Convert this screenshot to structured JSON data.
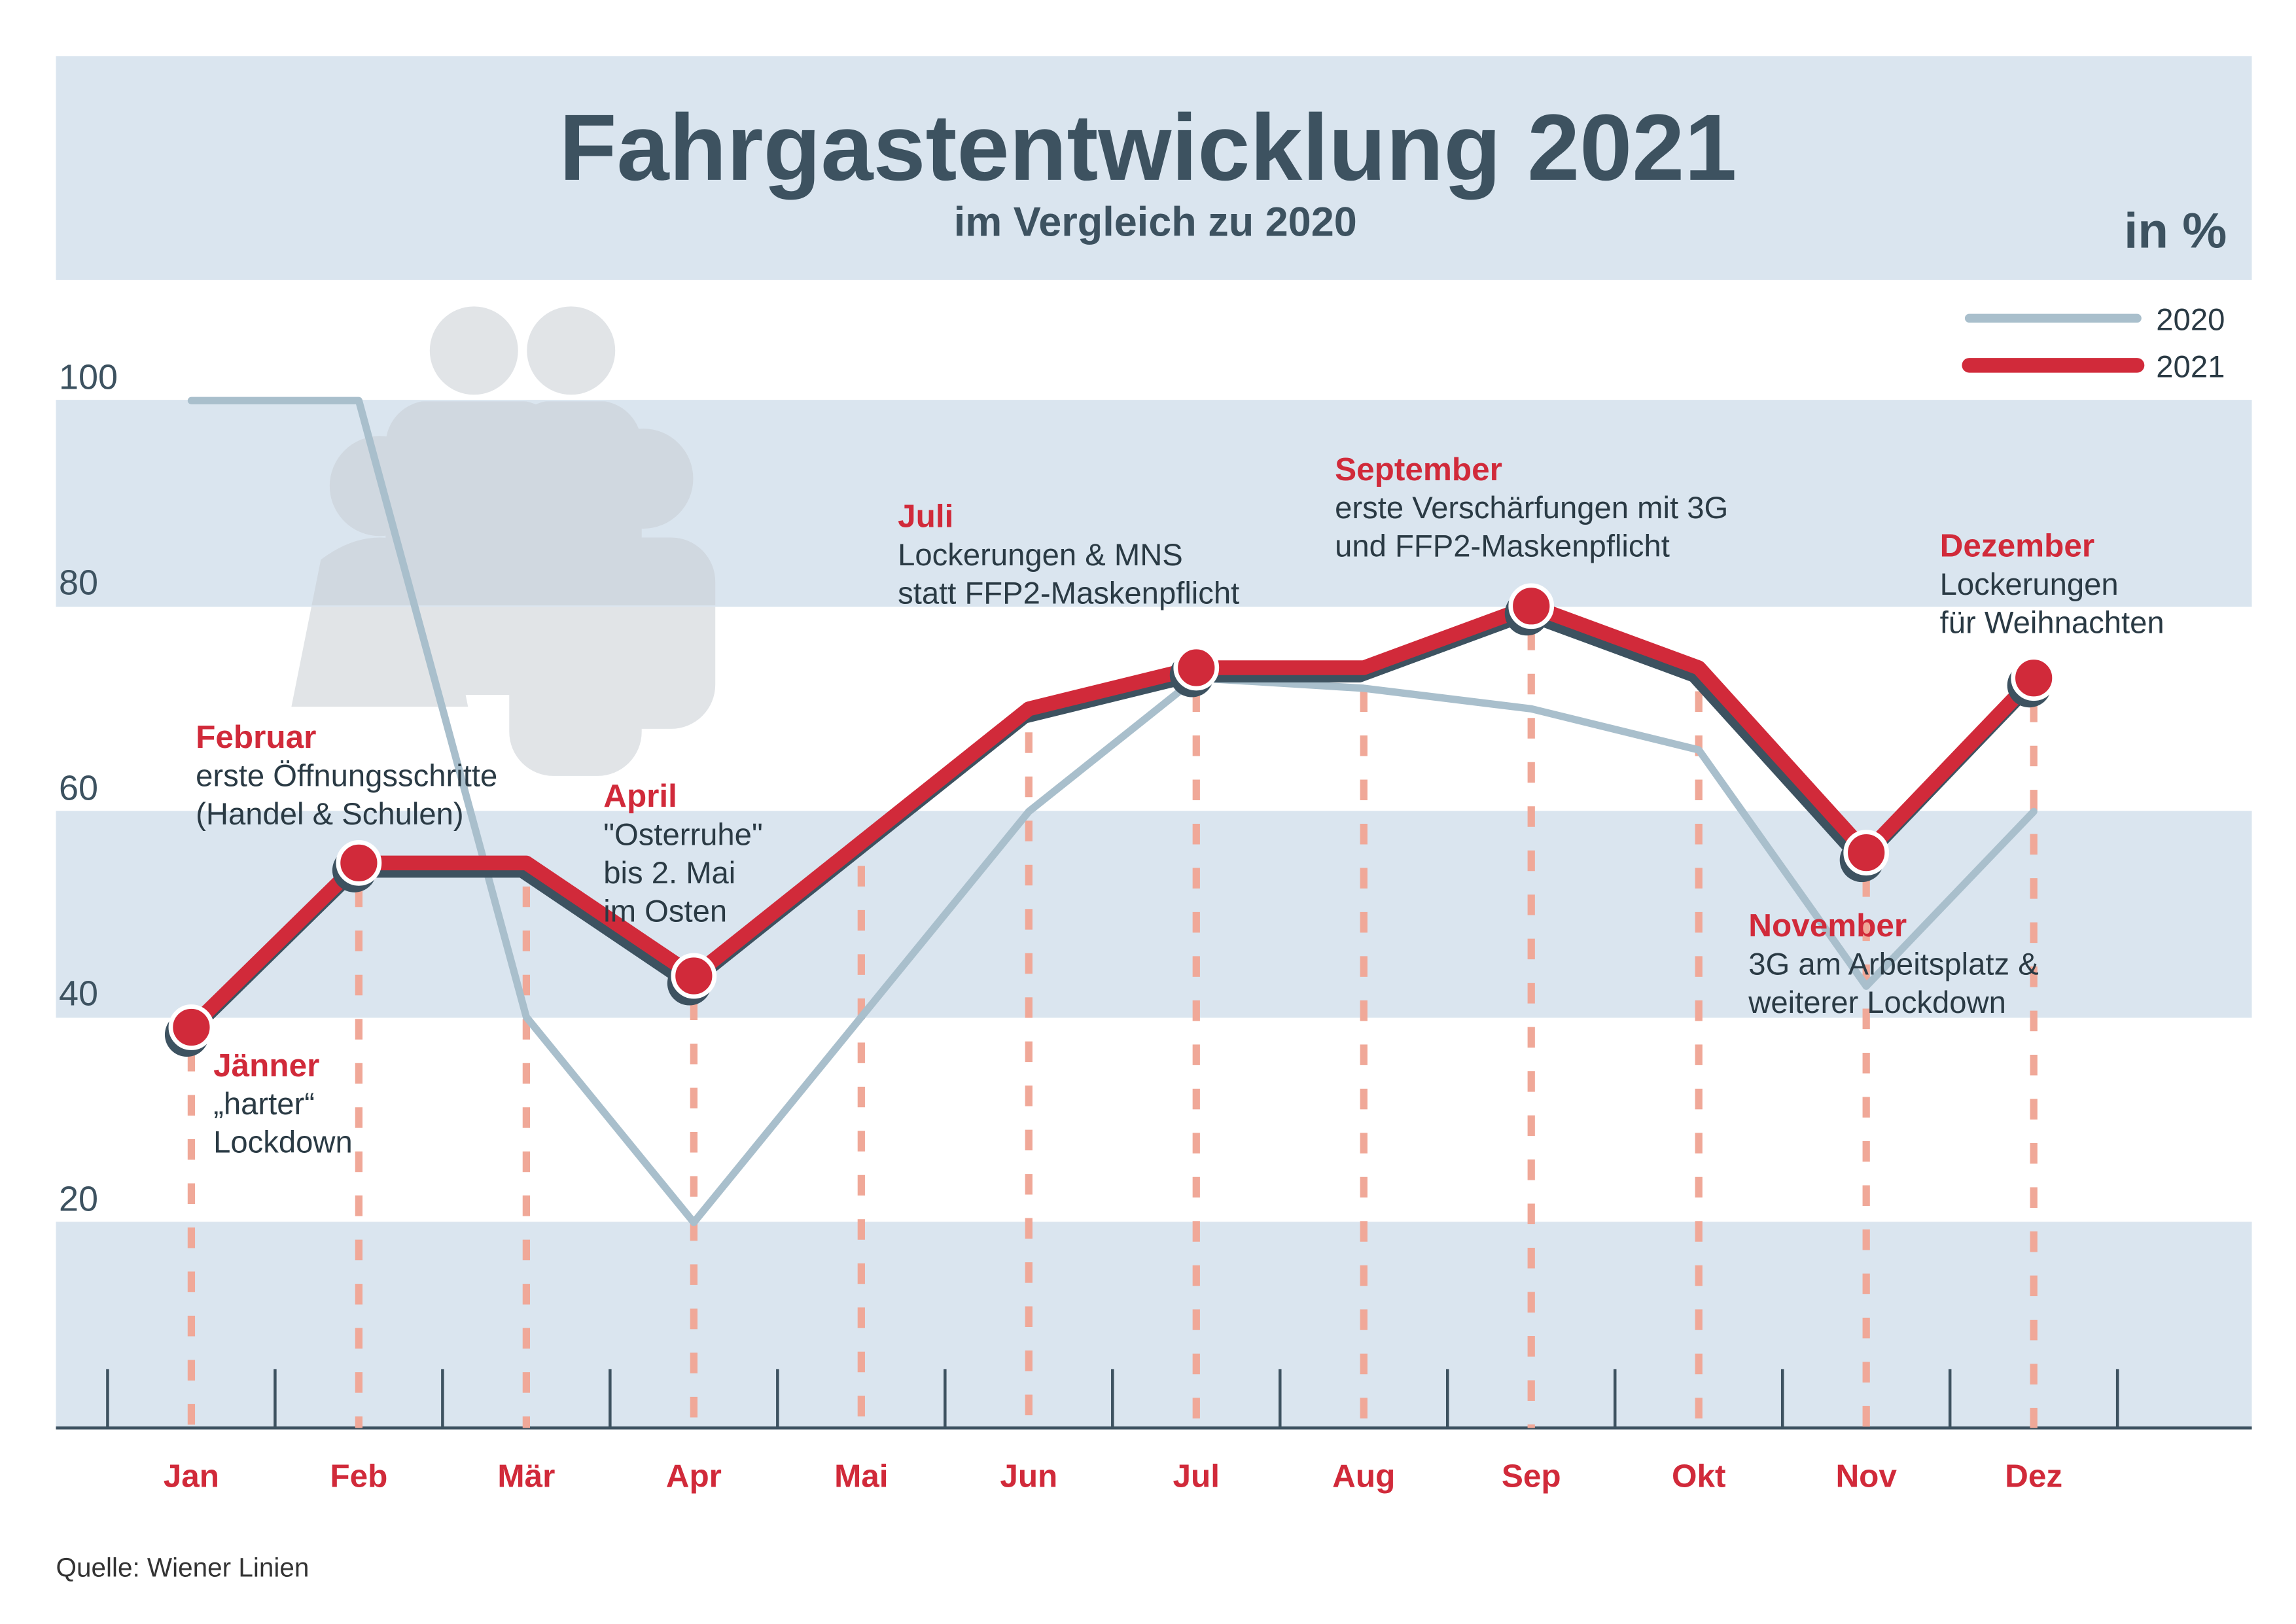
{
  "chart_data": {
    "type": "line",
    "title": "Fahrgastentwicklung 2021",
    "subtitle": "im Vergleich zu 2020",
    "unit": "in %",
    "source": "Quelle: Wiener Linien",
    "categories": [
      "Jan",
      "Feb",
      "Mär",
      "Apr",
      "Mai",
      "Jun",
      "Jul",
      "Aug",
      "Sep",
      "Okt",
      "Nov",
      "Dez"
    ],
    "series": [
      {
        "name": "2020",
        "color": "#a9bfcc",
        "values": [
          100,
          100,
          40,
          20,
          40,
          60,
          73,
          72,
          70,
          66,
          43,
          60
        ]
      },
      {
        "name": "2021",
        "color": "#d12a3a",
        "values": [
          39,
          55,
          55,
          44,
          57,
          70,
          74,
          74,
          80,
          74,
          56,
          73
        ]
      }
    ],
    "ylim": [
      0,
      100
    ],
    "yticks": [
      20,
      40,
      60,
      80,
      100
    ],
    "legend": "top-right",
    "annotations": [
      {
        "index": 0,
        "title": "Jänner",
        "lines": [
          "„harter“",
          "Lockdown"
        ]
      },
      {
        "index": 1,
        "title": "Februar",
        "lines": [
          "erste Öffnungsschritte",
          "(Handel & Schulen)"
        ]
      },
      {
        "index": 3,
        "title": "April",
        "lines": [
          "\"Osterruhe\"",
          "bis 2. Mai",
          "im Osten"
        ]
      },
      {
        "index": 6,
        "title": "Juli",
        "lines": [
          "Lockerungen & MNS",
          "statt FFP2-Maskenpflicht"
        ]
      },
      {
        "index": 8,
        "title": "September",
        "lines": [
          "erste Verschärfungen mit 3G",
          "und FFP2-Maskenpflicht"
        ]
      },
      {
        "index": 10,
        "title": "November",
        "lines": [
          "3G am Arbeitsplatz &",
          "weiterer Lockdown"
        ]
      },
      {
        "index": 11,
        "title": "Dezember",
        "lines": [
          "Lockerungen",
          "für Weihnachten"
        ]
      }
    ]
  }
}
